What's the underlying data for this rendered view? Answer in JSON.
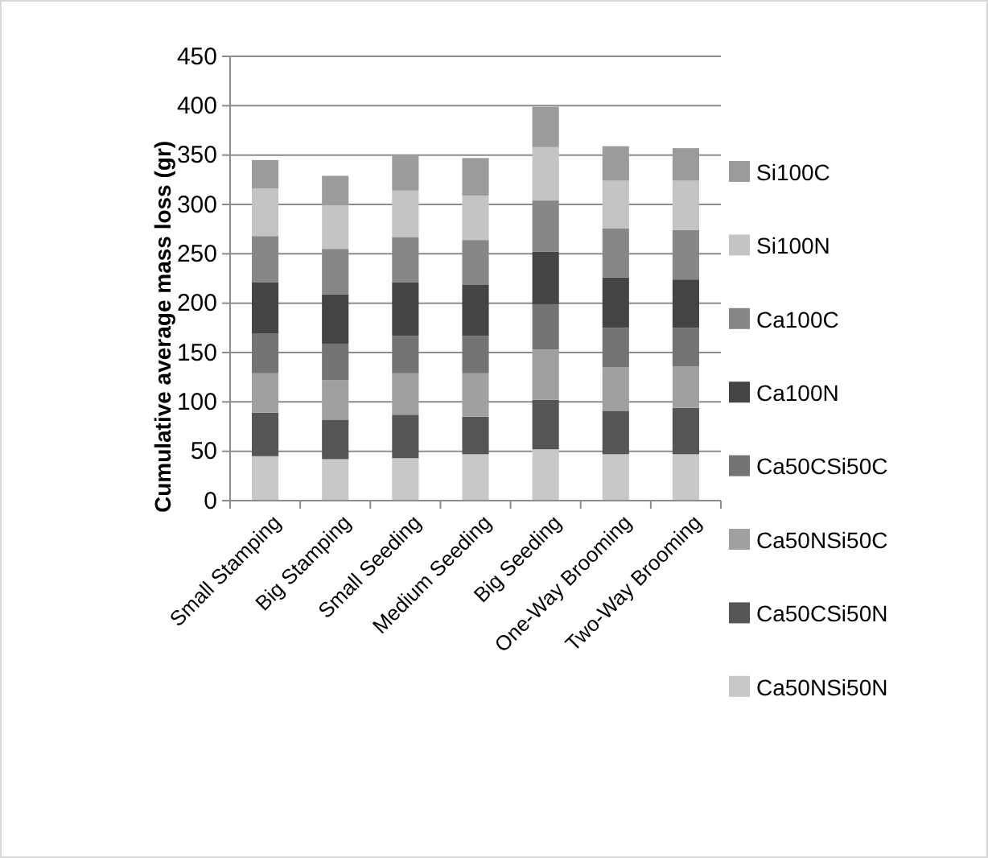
{
  "chart_data": {
    "type": "bar",
    "stacked": true,
    "ylabel": "Cumulative average mass loss (gr)",
    "categories": [
      "Small Stamping",
      "Big Stamping",
      "Small Seeding",
      "Medium Seeding",
      "Big Seeding",
      "One-Way Brooming",
      "Two-Way Brooming"
    ],
    "series": [
      {
        "name": "Ca50NSi50N",
        "color": "#c8c8c8",
        "values": [
          45,
          42,
          43,
          47,
          52,
          47,
          47
        ]
      },
      {
        "name": "Ca50CSi50N",
        "color": "#555555",
        "values": [
          44,
          40,
          44,
          38,
          50,
          44,
          47
        ]
      },
      {
        "name": "Ca50NSi50C",
        "color": "#a0a0a0",
        "values": [
          40,
          40,
          42,
          44,
          51,
          44,
          42
        ]
      },
      {
        "name": "Ca50CSi50C",
        "color": "#747474",
        "values": [
          40,
          37,
          38,
          38,
          46,
          40,
          39
        ]
      },
      {
        "name": "Ca100N",
        "color": "#444444",
        "values": [
          52,
          50,
          54,
          52,
          53,
          51,
          49
        ]
      },
      {
        "name": "Ca100C",
        "color": "#878787",
        "values": [
          47,
          46,
          46,
          45,
          52,
          50,
          50
        ]
      },
      {
        "name": "Si100N",
        "color": "#c4c4c4",
        "values": [
          48,
          44,
          47,
          45,
          54,
          48,
          50
        ]
      },
      {
        "name": "Si100C",
        "color": "#9b9b9b",
        "values": [
          29,
          30,
          35,
          38,
          41,
          35,
          33
        ]
      }
    ],
    "ylim": [
      0,
      450
    ],
    "yticks": [
      0,
      50,
      100,
      150,
      200,
      250,
      300,
      350,
      400,
      450
    ],
    "grid": "y",
    "legend": "right"
  }
}
